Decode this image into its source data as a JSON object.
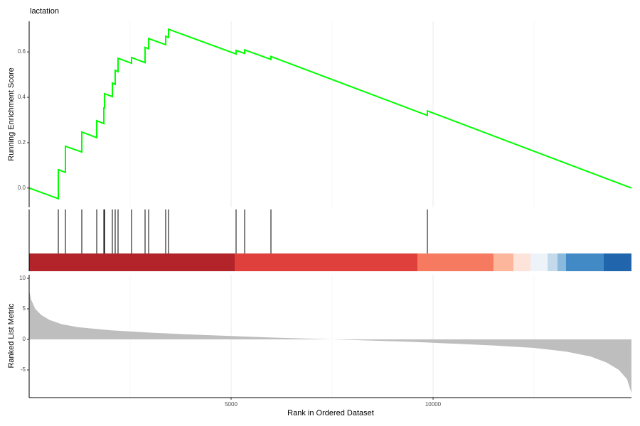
{
  "chart_data": {
    "type": "gsea",
    "title": "lactation",
    "xlabel": "Rank in Ordered Dataset",
    "xlim": [
      0,
      14912
    ],
    "xticks": [
      5000,
      10000
    ],
    "xminor": [
      2500,
      7500,
      12500
    ],
    "es": {
      "ylabel": "Running Enrichment Score",
      "color": "#00ff00",
      "ylim": [
        -0.085,
        0.735
      ],
      "yticks": [
        {
          "value": 0,
          "label": "0.0"
        },
        0.2,
        0.4,
        0.6
      ],
      "x": [
        0,
        722,
        722,
        898,
        898,
        1303,
        1303,
        1673,
        1673,
        1849,
        1849,
        1866,
        1866,
        2060,
        2060,
        2130,
        2130,
        2201,
        2201,
        2535,
        2535,
        2870,
        2870,
        2958,
        2958,
        3380,
        3380,
        3451,
        3451,
        5123,
        5123,
        5335,
        5335,
        5986,
        5986,
        9859,
        9859,
        14912
      ],
      "y": [
        0,
        -0.047,
        0.081,
        0.069,
        0.184,
        0.159,
        0.247,
        0.222,
        0.297,
        0.284,
        0.353,
        0.353,
        0.416,
        0.403,
        0.463,
        0.457,
        0.519,
        0.513,
        0.572,
        0.55,
        0.575,
        0.553,
        0.62,
        0.614,
        0.659,
        0.632,
        0.669,
        0.664,
        0.7,
        0.591,
        0.607,
        0.593,
        0.609,
        0.567,
        0.58,
        0.32,
        0.34,
        0
      ]
    },
    "hits": [
      722,
      898,
      1303,
      1673,
      1849,
      1866,
      2060,
      2130,
      2201,
      2535,
      2870,
      2958,
      3380,
      3451,
      5123,
      5335,
      5986,
      9859
    ],
    "bands": {
      "edges": [
        0,
        5088,
        9613,
        11496,
        11989,
        12412,
        12835,
        13081,
        13292,
        14225,
        14912
      ],
      "colors": [
        "#b2242a",
        "#e0403b",
        "#f67a60",
        "#fbb69b",
        "#fde3d9",
        "#eef3fa",
        "#c4d9ea",
        "#89b9dc",
        "#428ac6",
        "#2166ac"
      ]
    },
    "metric": {
      "ylabel": "Ranked List Metric",
      "color": "#bebebe",
      "ylim": [
        -9.53,
        10.58
      ],
      "yticks": [
        -5,
        0,
        5,
        10
      ],
      "x": [
        0,
        50,
        150,
        300,
        500,
        800,
        1200,
        2000,
        3000,
        4000,
        5000,
        6000,
        7000,
        7500,
        8500,
        9500,
        10500,
        11500,
        12500,
        13300,
        13900,
        14300,
        14600,
        14800,
        14912
      ],
      "y": [
        8,
        6.5,
        5,
        4,
        3.2,
        2.5,
        2,
        1.5,
        1.1,
        0.8,
        0.55,
        0.3,
        0.1,
        0,
        -0.2,
        -0.4,
        -0.7,
        -1,
        -1.4,
        -2,
        -2.8,
        -3.8,
        -5,
        -6.5,
        -8.8
      ]
    }
  }
}
